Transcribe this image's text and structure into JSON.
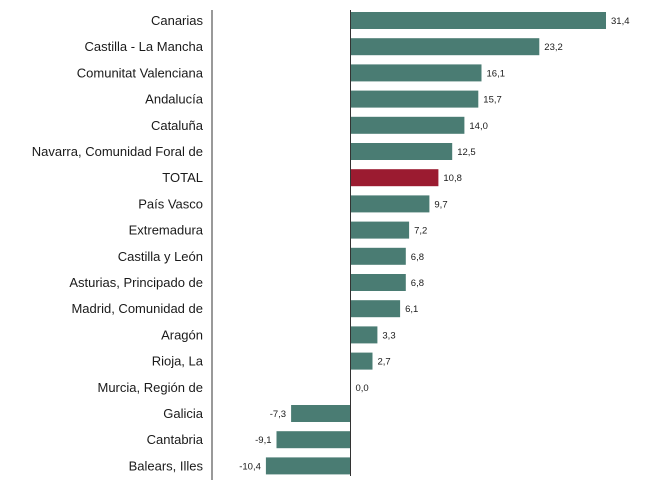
{
  "chart_data": {
    "type": "bar",
    "orientation": "horizontal",
    "categories": [
      "Canarias",
      "Castilla - La Mancha",
      "Comunitat Valenciana",
      "Andalucía",
      "Cataluña",
      "Navarra, Comunidad Foral de",
      "TOTAL",
      "País Vasco",
      "Extremadura",
      "Castilla y León",
      "Asturias, Principado de",
      "Madrid, Comunidad de",
      "Aragón",
      "Rioja, La",
      "Murcia, Región de",
      "Galicia",
      "Cantabria",
      "Balears, Illes"
    ],
    "values": [
      31.4,
      23.2,
      16.1,
      15.7,
      14.0,
      12.5,
      10.8,
      9.7,
      7.2,
      6.8,
      6.8,
      6.1,
      3.3,
      2.7,
      0.0,
      -7.3,
      -9.1,
      -10.4
    ],
    "value_labels": [
      "31,4",
      "23,2",
      "16,1",
      "15,7",
      "14,0",
      "12,5",
      "10,8",
      "9,7",
      "7,2",
      "6,8",
      "6,8",
      "6,1",
      "3,3",
      "2,7",
      "0,0",
      "-7,3",
      "-9,1",
      "-10,4"
    ],
    "highlight_category": "TOTAL",
    "colors": {
      "bar": "#4a7c73",
      "highlight": "#9b1b30",
      "axis": "#333333"
    },
    "xlim": [
      -12.5,
      31.4
    ],
    "grid": false,
    "legend": "none"
  }
}
